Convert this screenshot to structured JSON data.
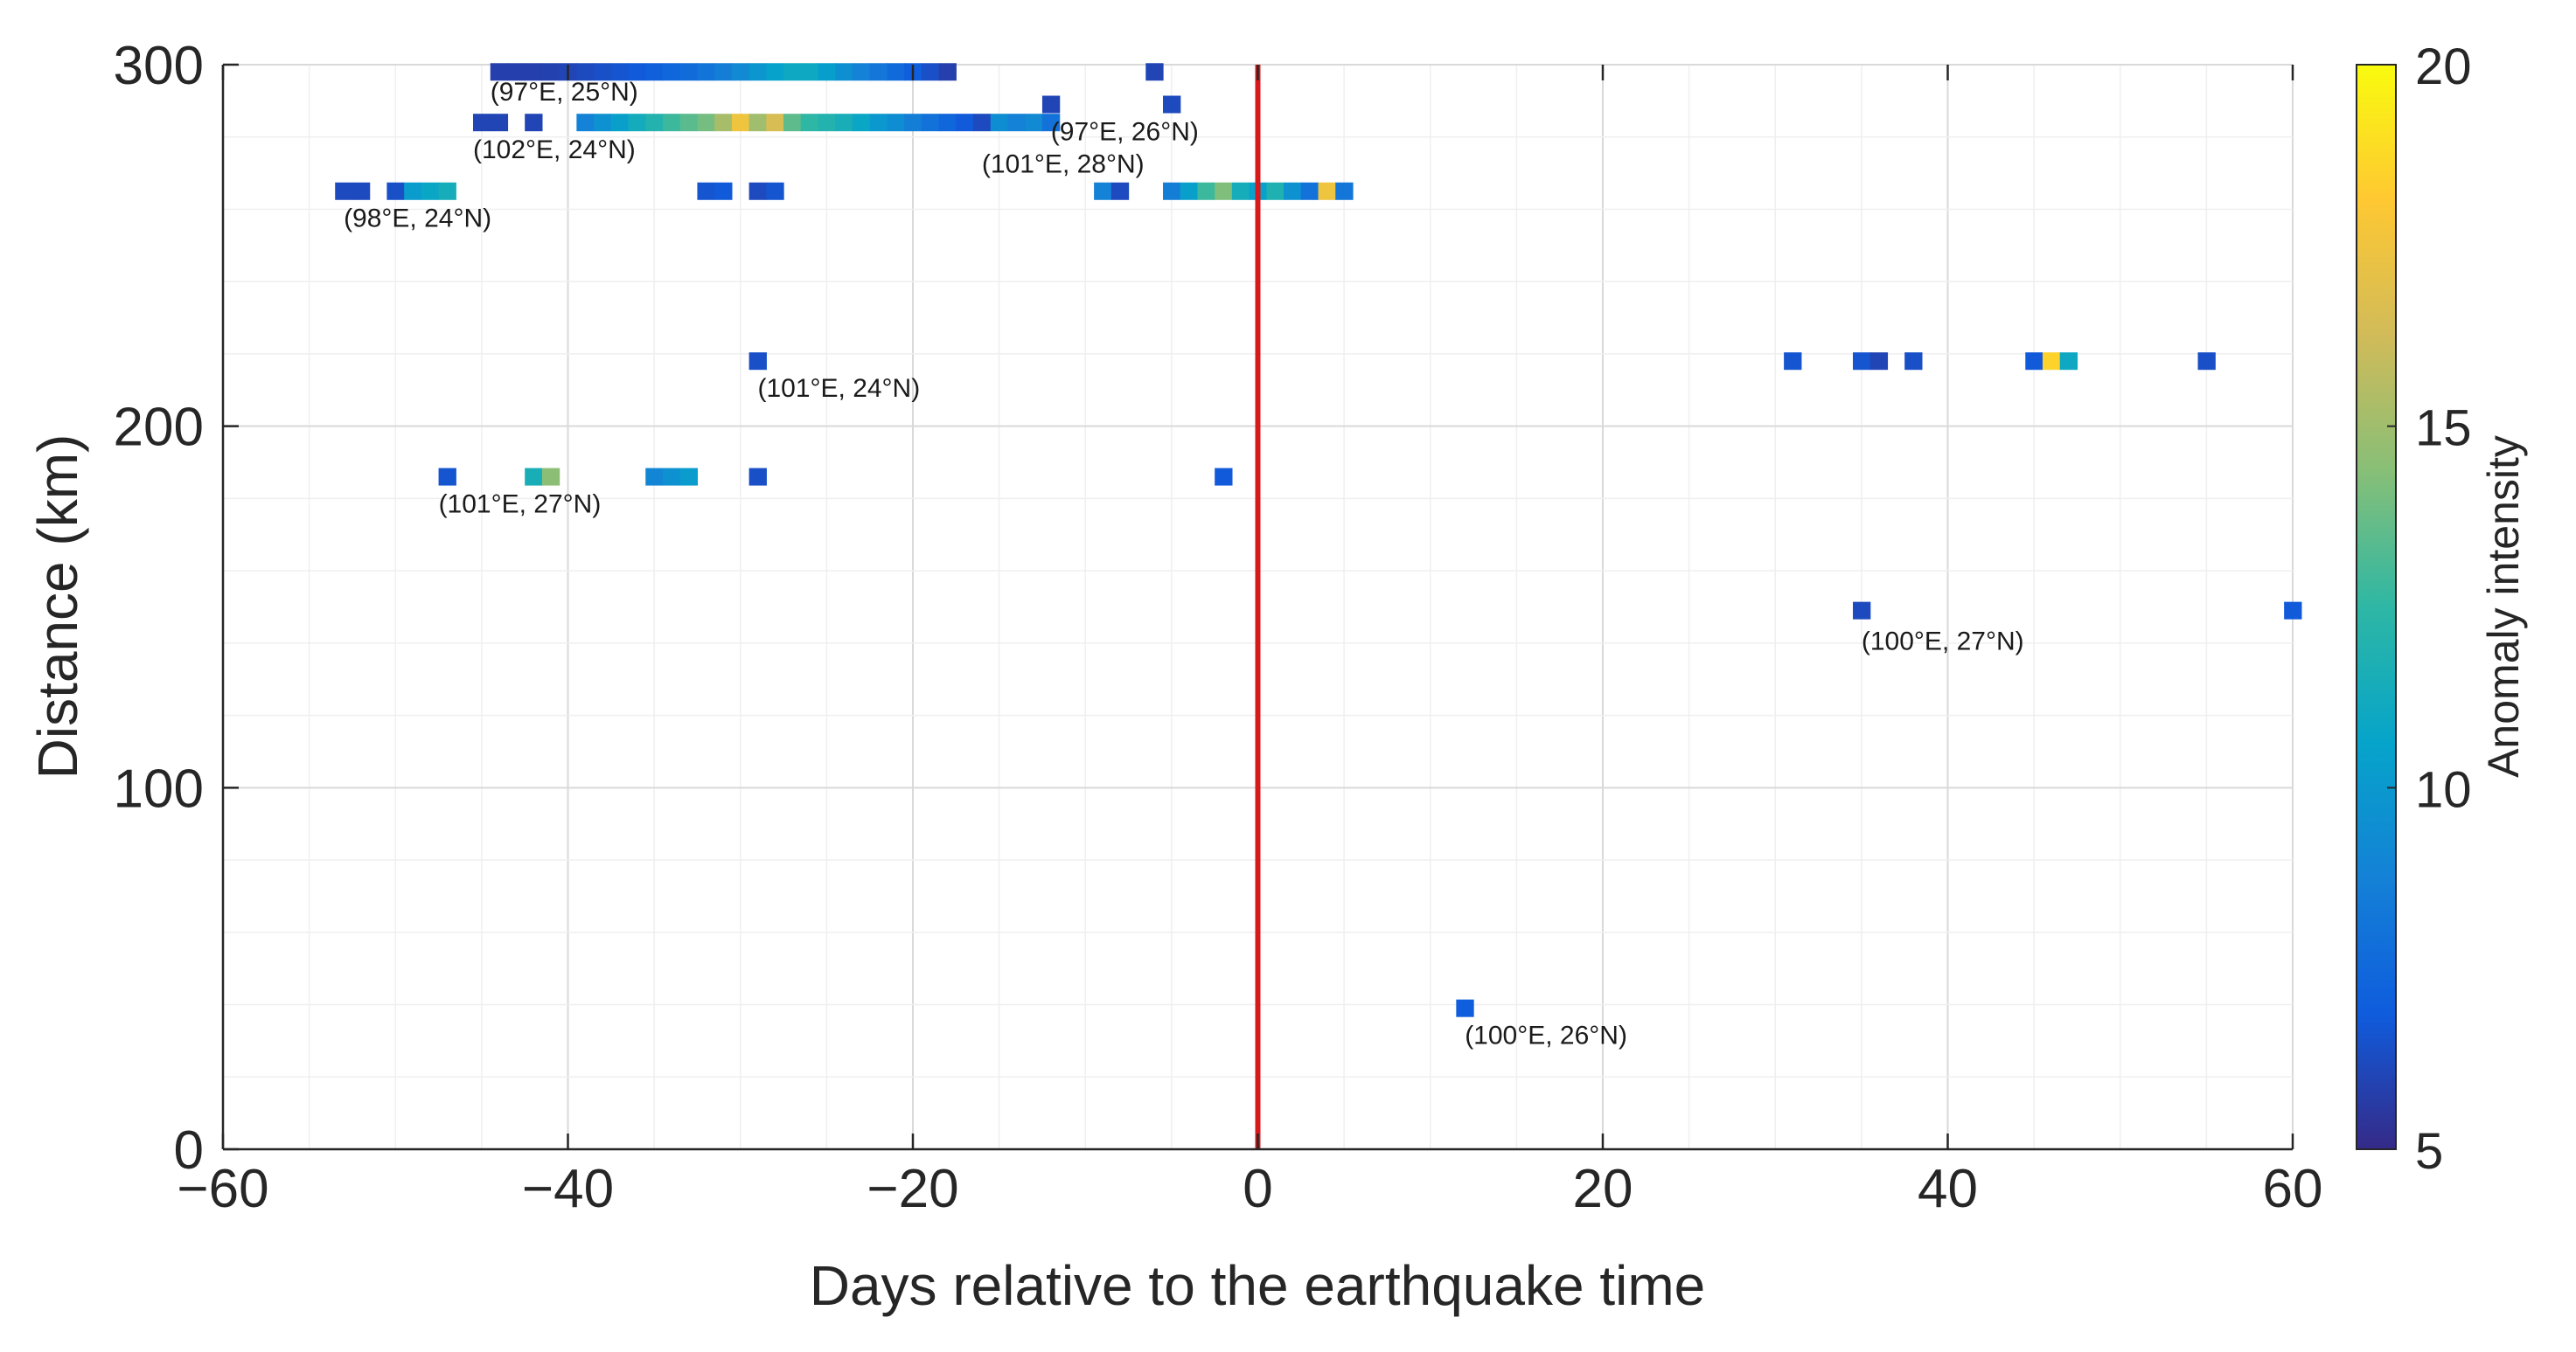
{
  "chart_data": {
    "type": "heatmap",
    "xlabel": "Days relative to the earthquake time",
    "ylabel": "Distance (km)",
    "xlim": [
      -60,
      60
    ],
    "ylim": [
      0,
      300
    ],
    "xticks": [
      -60,
      -40,
      -20,
      0,
      20,
      40,
      60
    ],
    "yticks": [
      0,
      100,
      200,
      300
    ],
    "x_tick_labels": [
      "−60",
      "−40",
      "−20",
      "0",
      "20",
      "40",
      "60"
    ],
    "y_tick_labels": [
      "0",
      "100",
      "200",
      "300"
    ],
    "grid": true,
    "event_line": {
      "x": 0,
      "color": "#d7191c"
    },
    "colorbar": {
      "label": "Anomaly intensity",
      "range": [
        5,
        20
      ],
      "ticks": [
        5,
        10,
        15,
        20
      ],
      "tick_labels": [
        "5",
        "10",
        "15",
        "20"
      ],
      "colormap": [
        "#352a87",
        "#0f5cdd",
        "#1481d6",
        "#06a4ca",
        "#2eb7a4",
        "#87bf77",
        "#d1bb59",
        "#fec832",
        "#f9fb0e"
      ]
    },
    "cell_width_days": 1,
    "rows": [
      {
        "distance": 298,
        "cells": [
          [
            -44,
            5.8
          ],
          [
            -43,
            5.8
          ],
          [
            -42,
            5.8
          ],
          [
            -41,
            5.9
          ],
          [
            -40,
            6
          ],
          [
            -39,
            6.2
          ],
          [
            -38,
            6.4
          ],
          [
            -37,
            6.6
          ],
          [
            -36,
            6.8
          ],
          [
            -35,
            7.1
          ],
          [
            -34,
            7.4
          ],
          [
            -33,
            7.7
          ],
          [
            -32,
            8.1
          ],
          [
            -31,
            8.6
          ],
          [
            -30,
            9.2
          ],
          [
            -29,
            9.9
          ],
          [
            -28,
            10.5
          ],
          [
            -27,
            11
          ],
          [
            -26,
            11
          ],
          [
            -25,
            10.3
          ],
          [
            -24,
            9.5
          ],
          [
            -23,
            8.8
          ],
          [
            -22,
            8.2
          ],
          [
            -21,
            7.6
          ],
          [
            -20,
            7
          ],
          [
            -19,
            6.4
          ],
          [
            -18,
            5.8
          ],
          [
            -6,
            6
          ]
        ]
      },
      {
        "distance": 289,
        "cells": [
          [
            -12,
            6
          ],
          [
            -5,
            6.2
          ]
        ]
      },
      {
        "distance": 284,
        "cells": [
          [
            -45,
            6
          ],
          [
            -44,
            6
          ],
          [
            -42,
            6
          ],
          [
            -39,
            8.8
          ],
          [
            -38,
            9.6
          ],
          [
            -37,
            10.4
          ],
          [
            -36,
            11.3
          ],
          [
            -35,
            12
          ],
          [
            -34,
            12.8
          ],
          [
            -33,
            13.4
          ],
          [
            -32,
            14
          ],
          [
            -31,
            15.2
          ],
          [
            -30,
            17.5
          ],
          [
            -29,
            15
          ],
          [
            -28,
            16.5
          ],
          [
            -27,
            13.5
          ],
          [
            -26,
            12.5
          ],
          [
            -25,
            12
          ],
          [
            -24,
            11.5
          ],
          [
            -23,
            10.8
          ],
          [
            -22,
            10
          ],
          [
            -21,
            9.4
          ],
          [
            -20,
            8.6
          ],
          [
            -19,
            8
          ],
          [
            -18,
            7.4
          ],
          [
            -17,
            6.8
          ],
          [
            -16,
            6.2
          ],
          [
            -15,
            9.4
          ],
          [
            -14,
            8.8
          ],
          [
            -13,
            9.2
          ],
          [
            -12,
            8
          ]
        ]
      },
      {
        "distance": 265,
        "cells": [
          [
            -53,
            6.2
          ],
          [
            -52,
            6.2
          ],
          [
            -50,
            6.4
          ],
          [
            -49,
            10.2
          ],
          [
            -48,
            10.8
          ],
          [
            -47,
            11.4
          ],
          [
            -32,
            6.6
          ],
          [
            -31,
            6.8
          ],
          [
            -29,
            6.2
          ],
          [
            -28,
            6.6
          ],
          [
            -9,
            8.8
          ],
          [
            -8,
            6.2
          ],
          [
            -5,
            8.6
          ],
          [
            -4,
            10.4
          ],
          [
            -3,
            12.8
          ],
          [
            -2,
            14.2
          ],
          [
            -1,
            11.4
          ],
          [
            0,
            10.5
          ],
          [
            1,
            11.8
          ],
          [
            2,
            9.6
          ],
          [
            3,
            8
          ],
          [
            4,
            17.5
          ],
          [
            5,
            8.2
          ]
        ]
      },
      {
        "distance": 218,
        "cells": [
          [
            -29,
            6.4
          ],
          [
            31,
            6.6
          ],
          [
            35,
            6.6
          ],
          [
            36,
            6
          ],
          [
            38,
            6.4
          ],
          [
            45,
            6.8
          ],
          [
            46,
            18.5
          ],
          [
            47,
            11
          ],
          [
            55,
            6.4
          ]
        ]
      },
      {
        "distance": 186,
        "cells": [
          [
            -47,
            6.6
          ],
          [
            -42,
            11.5
          ],
          [
            -41,
            14.5
          ],
          [
            -35,
            9
          ],
          [
            -34,
            9.6
          ],
          [
            -33,
            10.2
          ],
          [
            -29,
            6.4
          ],
          [
            -2,
            6.8
          ]
        ]
      },
      {
        "distance": 149,
        "cells": [
          [
            35,
            6.2
          ],
          [
            60,
            6.8
          ]
        ]
      },
      {
        "distance": 39,
        "cells": [
          [
            12,
            7
          ]
        ]
      }
    ],
    "annotations": [
      {
        "label": "(97°E, 25°N)",
        "x": -44.5,
        "y": 293,
        "anchor": "start"
      },
      {
        "label": "(102°E, 24°N)",
        "x": -45.5,
        "y": 277,
        "anchor": "start"
      },
      {
        "label": "(97°E, 26°N)",
        "x": -12,
        "y": 282,
        "anchor": "start"
      },
      {
        "label": "(101°E, 28°N)",
        "x": -16,
        "y": 273,
        "anchor": "start"
      },
      {
        "label": "(98°E, 24°N)",
        "x": -53,
        "y": 258,
        "anchor": "start"
      },
      {
        "label": "(101°E, 24°N)",
        "x": -29,
        "y": 211,
        "anchor": "start"
      },
      {
        "label": "(101°E, 27°N)",
        "x": -47.5,
        "y": 179,
        "anchor": "start"
      },
      {
        "label": "(100°E, 27°N)",
        "x": 35,
        "y": 141,
        "anchor": "start"
      },
      {
        "label": "(100°E, 26°N)",
        "x": 12,
        "y": 32,
        "anchor": "start"
      }
    ]
  }
}
